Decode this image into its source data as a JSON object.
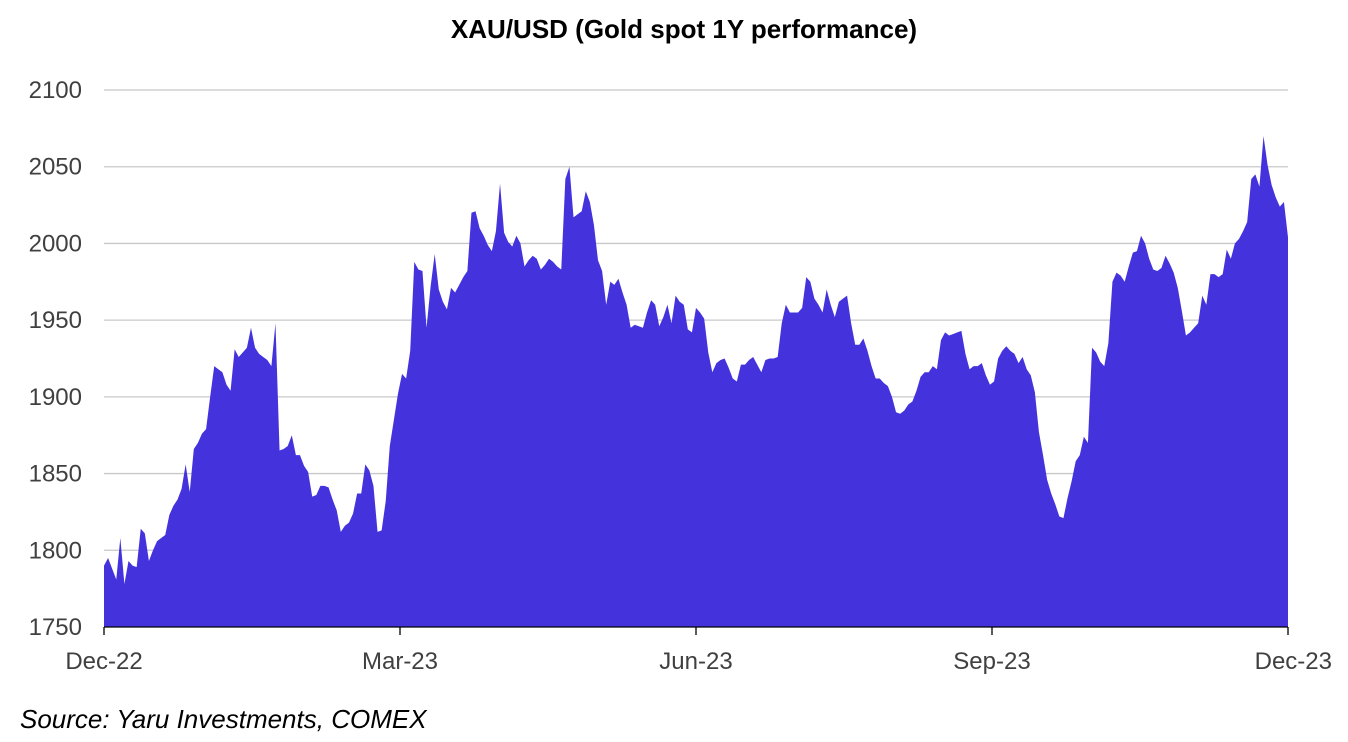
{
  "title": "XAU/USD (Gold spot 1Y performance)",
  "source": "Source: Yaru Investments, COMEX",
  "colors": {
    "area": "#4433dd",
    "grid": "#c8c8c8",
    "axis": "#000000"
  },
  "chart_data": {
    "type": "area",
    "title": "XAU/USD (Gold spot 1Y performance)",
    "xlabel": "",
    "ylabel": "",
    "ylim": [
      1750,
      2100
    ],
    "yticks": [
      1750,
      1800,
      1850,
      1900,
      1950,
      2000,
      2050,
      2100
    ],
    "xtick_labels": [
      "Dec-22",
      "Mar-23",
      "Jun-23",
      "Sep-23",
      "Dec-23"
    ],
    "grid": true,
    "legend": "none",
    "x_start": "2022-12-01",
    "x_end": "2023-12-01",
    "series": [
      {
        "values": [
          1790,
          1795,
          1788,
          1781,
          1808,
          1778,
          1793,
          1790,
          1789,
          1814,
          1811,
          1793,
          1800,
          1806,
          1808,
          1810,
          1823,
          1829,
          1833,
          1840,
          1856,
          1838,
          1866,
          1870,
          1876,
          1879,
          1900,
          1920,
          1918,
          1916,
          1908,
          1904,
          1931,
          1926,
          1929,
          1932,
          1945,
          1932,
          1928,
          1926,
          1924,
          1920,
          1948,
          1865,
          1866,
          1868,
          1875,
          1862,
          1862,
          1855,
          1851,
          1835,
          1836,
          1842,
          1842,
          1841,
          1833,
          1826,
          1812,
          1816,
          1818,
          1824,
          1837,
          1837,
          1856,
          1852,
          1842,
          1812,
          1813,
          1832,
          1868,
          1885,
          1902,
          1915,
          1912,
          1930,
          1988,
          1983,
          1982,
          1945,
          1972,
          1993,
          1970,
          1962,
          1957,
          1971,
          1968,
          1973,
          1978,
          1982,
          2020,
          2021,
          2010,
          2005,
          1999,
          1995,
          2008,
          2039,
          2007,
          2001,
          1998,
          2005,
          2000,
          1985,
          1989,
          1992,
          1990,
          1983,
          1986,
          1990,
          1988,
          1985,
          1983,
          2042,
          2050,
          2017,
          2019,
          2021,
          2034,
          2027,
          2012,
          1989,
          1982,
          1960,
          1975,
          1973,
          1977,
          1968,
          1960,
          1945,
          1947,
          1946,
          1945,
          1955,
          1963,
          1960,
          1946,
          1952,
          1960,
          1948,
          1966,
          1962,
          1960,
          1944,
          1942,
          1958,
          1955,
          1951,
          1929,
          1916,
          1922,
          1924,
          1925,
          1919,
          1912,
          1910,
          1921,
          1921,
          1924,
          1926,
          1921,
          1916,
          1924,
          1925,
          1925,
          1926,
          1948,
          1960,
          1955,
          1955,
          1955,
          1958,
          1978,
          1975,
          1964,
          1960,
          1955,
          1970,
          1960,
          1952,
          1962,
          1964,
          1966,
          1948,
          1934,
          1934,
          1938,
          1930,
          1920,
          1912,
          1912,
          1909,
          1907,
          1900,
          1890,
          1889,
          1891,
          1895,
          1897,
          1904,
          1913,
          1916,
          1916,
          1920,
          1918,
          1937,
          1942,
          1940,
          1941,
          1942,
          1943,
          1928,
          1918,
          1920,
          1920,
          1922,
          1914,
          1908,
          1910,
          1925,
          1930,
          1933,
          1930,
          1928,
          1922,
          1926,
          1918,
          1914,
          1903,
          1877,
          1862,
          1846,
          1837,
          1830,
          1822,
          1821,
          1834,
          1845,
          1858,
          1862,
          1874,
          1870,
          1932,
          1929,
          1923,
          1920,
          1935,
          1975,
          1981,
          1979,
          1975,
          1985,
          1994,
          1995,
          2005,
          2000,
          1990,
          1983,
          1982,
          1984,
          1992,
          1987,
          1981,
          1971,
          1956,
          1940,
          1942,
          1945,
          1948,
          1966,
          1960,
          1980,
          1980,
          1978,
          1980,
          1996,
          1990,
          2000,
          2003,
          2008,
          2014,
          2042,
          2045,
          2037,
          2070,
          2051,
          2038,
          2030,
          2024,
          2027,
          2004
        ]
      }
    ]
  }
}
